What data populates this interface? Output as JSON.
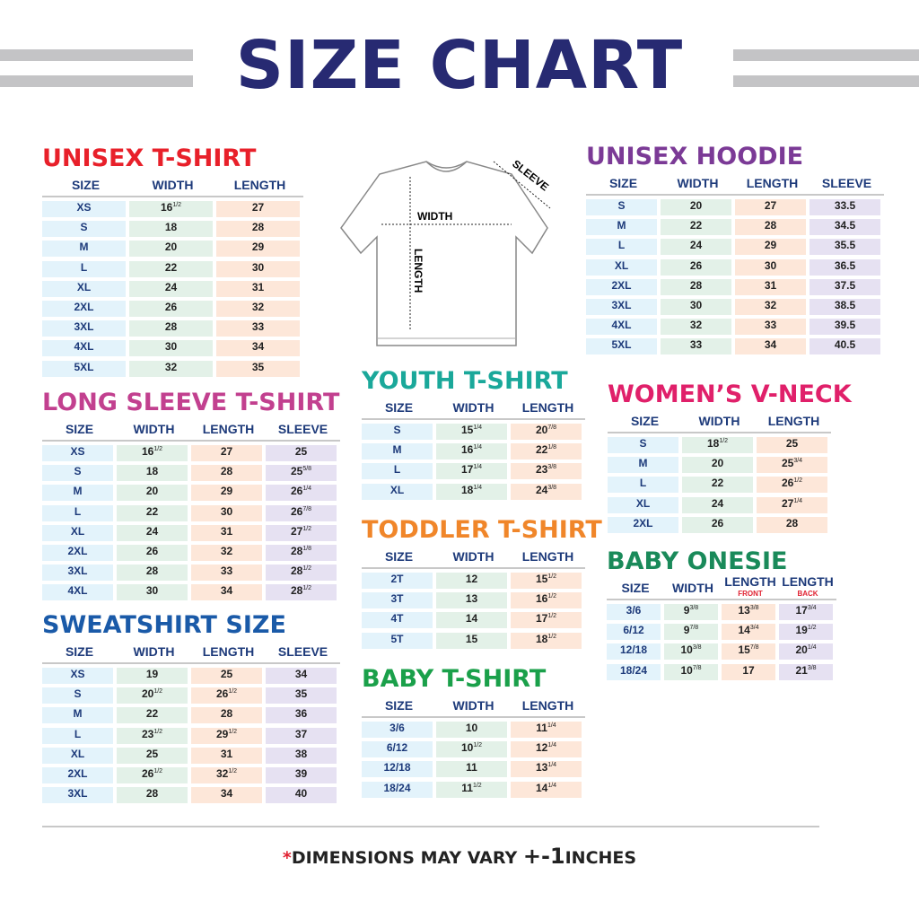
{
  "title": "SIZE CHART",
  "footer": {
    "star": "*",
    "text": "DIMENSIONS MAY VARY ",
    "pm": "+-1",
    "unit": "INCHES"
  },
  "shirt_labels": {
    "width": "WIDTH",
    "length": "LENGTH",
    "sleeve": "SLEEVE"
  },
  "colors": {
    "title": "#272a72",
    "header_text": "#1d3a7a",
    "size_cell": "#e3f3fb",
    "width_cell": "#e3f1e8",
    "length_cell": "#fde7d9",
    "sleeve_cell": "#e6e1f2"
  },
  "tables": [
    {
      "id": "unisex-tshirt",
      "title": "UNISEX T-SHIRT",
      "color": "#e8202a",
      "headers": [
        "SIZE",
        "WIDTH",
        "LENGTH"
      ],
      "rows": [
        [
          "XS",
          "16 1/2",
          "27"
        ],
        [
          "S",
          "18",
          "28"
        ],
        [
          "M",
          "20",
          "29"
        ],
        [
          "L",
          "22",
          "30"
        ],
        [
          "XL",
          "24",
          "31"
        ],
        [
          "2XL",
          "26",
          "32"
        ],
        [
          "3XL",
          "28",
          "33"
        ],
        [
          "4XL",
          "30",
          "34"
        ],
        [
          "5XL",
          "32",
          "35"
        ]
      ]
    },
    {
      "id": "long-sleeve",
      "title": "LONG SLEEVE T-SHIRT",
      "color": "#c2408f",
      "headers": [
        "SIZE",
        "WIDTH",
        "LENGTH",
        "SLEEVE"
      ],
      "rows": [
        [
          "XS",
          "16 1/2",
          "27",
          "25"
        ],
        [
          "S",
          "18",
          "28",
          "25 5/8"
        ],
        [
          "M",
          "20",
          "29",
          "26 1/4"
        ],
        [
          "L",
          "22",
          "30",
          "26 7/8"
        ],
        [
          "XL",
          "24",
          "31",
          "27 1/2"
        ],
        [
          "2XL",
          "26",
          "32",
          "28 1/8"
        ],
        [
          "3XL",
          "28",
          "33",
          "28 1/2"
        ],
        [
          "4XL",
          "30",
          "34",
          "28 1/2"
        ]
      ]
    },
    {
      "id": "sweatshirt",
      "title": "SWEATSHIRT SIZE",
      "color": "#1a5aa8",
      "headers": [
        "SIZE",
        "WIDTH",
        "LENGTH",
        "SLEEVE"
      ],
      "rows": [
        [
          "XS",
          "19",
          "25",
          "34"
        ],
        [
          "S",
          "20 1/2",
          "26 1/2",
          "35"
        ],
        [
          "M",
          "22",
          "28",
          "36"
        ],
        [
          "L",
          "23 1/2",
          "29 1/2",
          "37"
        ],
        [
          "XL",
          "25",
          "31",
          "38"
        ],
        [
          "2XL",
          "26 1/2",
          "32 1/2",
          "39"
        ],
        [
          "3XL",
          "28",
          "34",
          "40"
        ]
      ]
    },
    {
      "id": "unisex-hoodie",
      "title": "UNISEX HOODIE",
      "color": "#7b3a96",
      "headers": [
        "SIZE",
        "WIDTH",
        "LENGTH",
        "SLEEVE"
      ],
      "rows": [
        [
          "S",
          "20",
          "27",
          "33.5"
        ],
        [
          "M",
          "22",
          "28",
          "34.5"
        ],
        [
          "L",
          "24",
          "29",
          "35.5"
        ],
        [
          "XL",
          "26",
          "30",
          "36.5"
        ],
        [
          "2XL",
          "28",
          "31",
          "37.5"
        ],
        [
          "3XL",
          "30",
          "32",
          "38.5"
        ],
        [
          "4XL",
          "32",
          "33",
          "39.5"
        ],
        [
          "5XL",
          "33",
          "34",
          "40.5"
        ]
      ]
    },
    {
      "id": "youth-tshirt",
      "title": "YOUTH T-SHIRT",
      "color": "#1aa89a",
      "headers": [
        "SIZE",
        "WIDTH",
        "LENGTH"
      ],
      "rows": [
        [
          "S",
          "15 1/4",
          "20 7/8"
        ],
        [
          "M",
          "16 1/4",
          "22 1/8"
        ],
        [
          "L",
          "17 1/4",
          "23 3/8"
        ],
        [
          "XL",
          "18 1/4",
          "24 3/8"
        ]
      ]
    },
    {
      "id": "toddler-tshirt",
      "title": "TODDLER T-SHIRT",
      "color": "#f0862a",
      "headers": [
        "SIZE",
        "WIDTH",
        "LENGTH"
      ],
      "rows": [
        [
          "2T",
          "12",
          "15 1/2"
        ],
        [
          "3T",
          "13",
          "16 1/2"
        ],
        [
          "4T",
          "14",
          "17 1/2"
        ],
        [
          "5T",
          "15",
          "18 1/2"
        ]
      ]
    },
    {
      "id": "baby-tshirt",
      "title": "BABY T-SHIRT",
      "color": "#1aa04a",
      "headers": [
        "SIZE",
        "WIDTH",
        "LENGTH"
      ],
      "rows": [
        [
          "3/6",
          "10",
          "11 1/4"
        ],
        [
          "6/12",
          "10 1/2",
          "12 1/4"
        ],
        [
          "12/18",
          "11",
          "13 1/4"
        ],
        [
          "18/24",
          "11 1/2",
          "14 1/4"
        ]
      ]
    },
    {
      "id": "womens-vneck",
      "title": "WOMEN’S V-NECK",
      "color": "#e0206a",
      "headers": [
        "SIZE",
        "WIDTH",
        "LENGTH"
      ],
      "rows": [
        [
          "S",
          "18 1/2",
          "25"
        ],
        [
          "M",
          "20",
          "25 3/4"
        ],
        [
          "L",
          "22",
          "26 1/2"
        ],
        [
          "XL",
          "24",
          "27 1/4"
        ],
        [
          "2XL",
          "26",
          "28"
        ]
      ]
    },
    {
      "id": "baby-onesie",
      "title": "BABY ONESIE",
      "color": "#1a8a5a",
      "headers": [
        "SIZE",
        "WIDTH",
        "LENGTH",
        "LENGTH"
      ],
      "header_subs": [
        "",
        "",
        "FRONT",
        "BACK"
      ],
      "rows": [
        [
          "3/6",
          "9 3/8",
          "13 3/8",
          "17 3/4"
        ],
        [
          "6/12",
          "9 7/8",
          "14 3/4",
          "19 1/2"
        ],
        [
          "12/18",
          "10 3/8",
          "15 7/8",
          "20 1/4"
        ],
        [
          "18/24",
          "10 7/8",
          "17",
          "21 3/8"
        ]
      ]
    }
  ]
}
